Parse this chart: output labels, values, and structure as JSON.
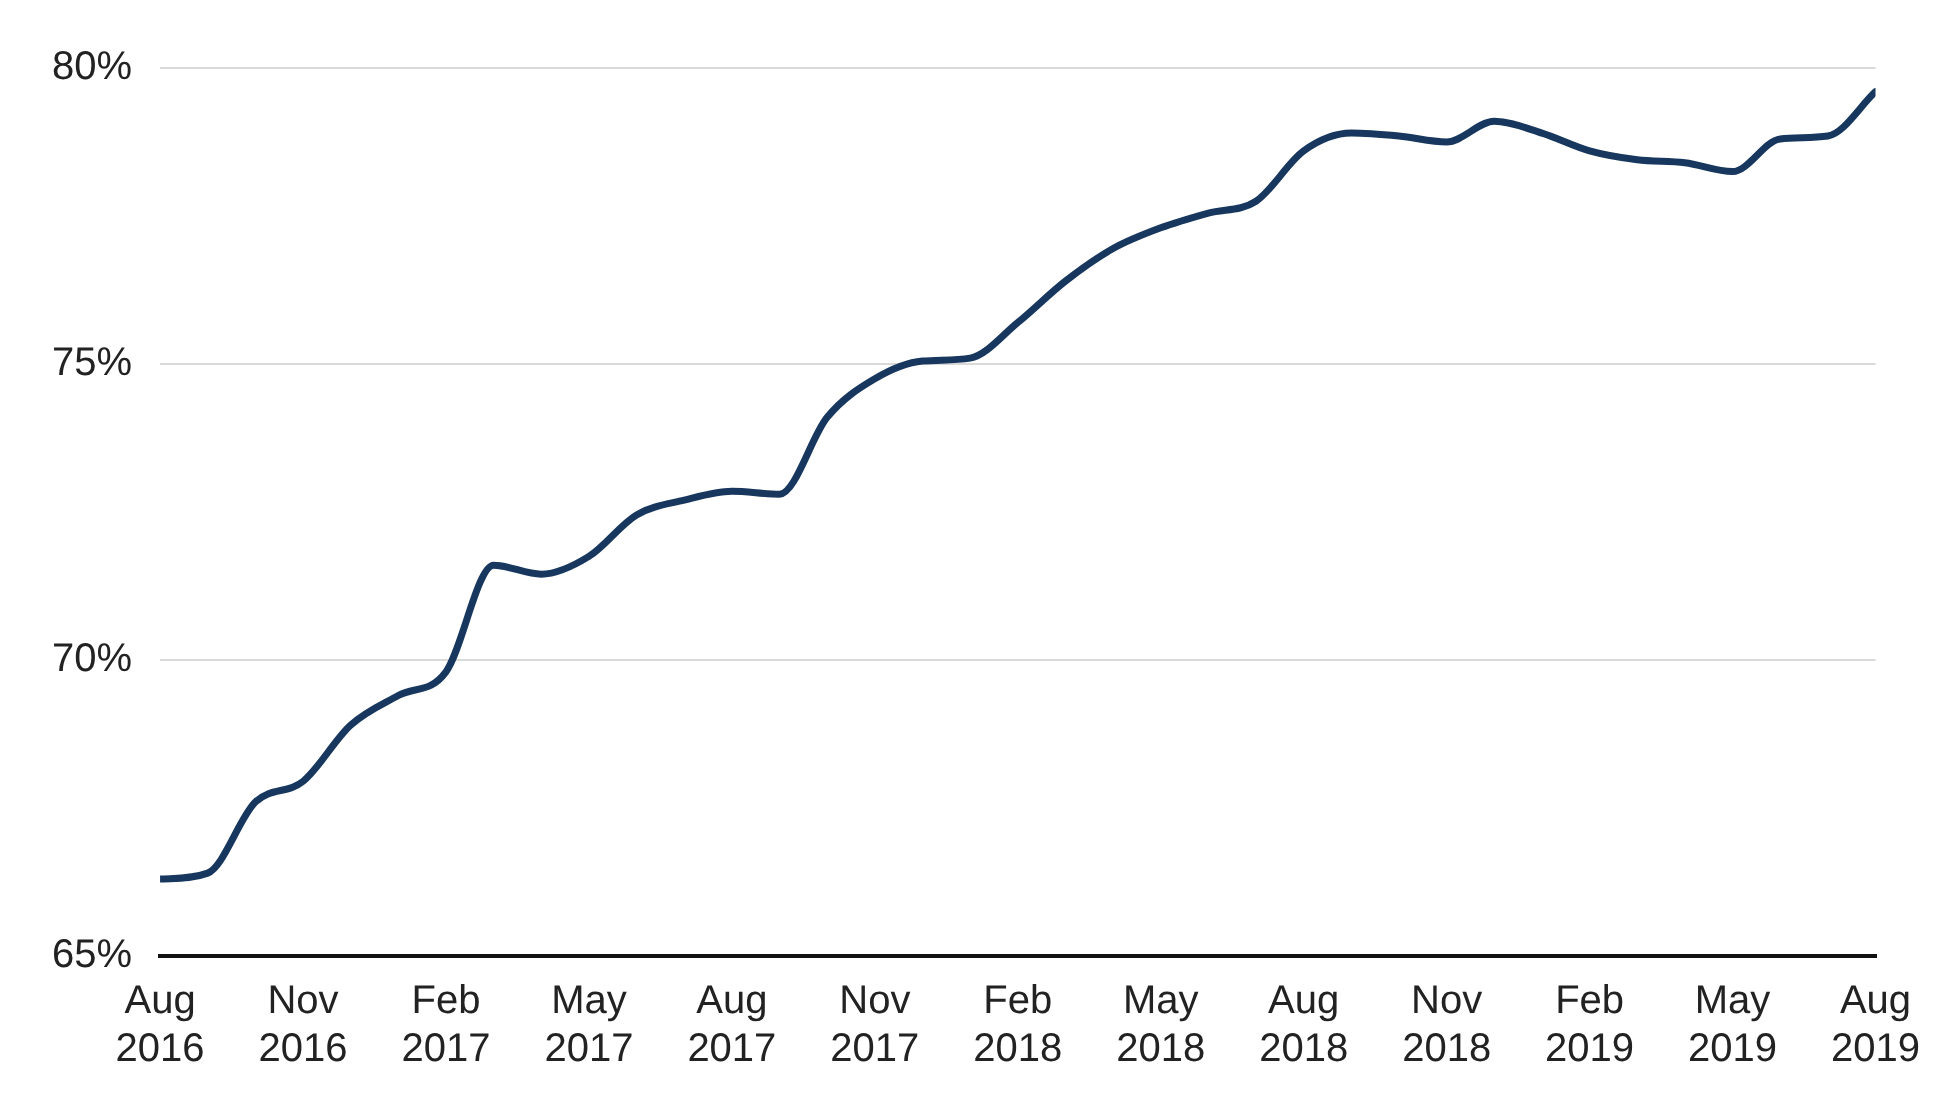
{
  "chart_data": {
    "type": "line",
    "x": [
      "2016-08",
      "2016-09",
      "2016-10",
      "2016-11",
      "2016-12",
      "2017-01",
      "2017-02",
      "2017-03",
      "2017-04",
      "2017-05",
      "2017-06",
      "2017-07",
      "2017-08",
      "2017-09",
      "2017-10",
      "2017-11",
      "2017-12",
      "2018-01",
      "2018-02",
      "2018-03",
      "2018-04",
      "2018-05",
      "2018-06",
      "2018-07",
      "2018-08",
      "2018-09",
      "2018-10",
      "2018-11",
      "2018-12",
      "2019-01",
      "2019-02",
      "2019-03",
      "2019-04",
      "2019-05",
      "2019-06",
      "2019-07",
      "2019-08"
    ],
    "series": [
      {
        "color": "#17375e",
        "values": [
          66.3,
          66.4,
          67.6,
          67.95,
          68.9,
          69.4,
          69.8,
          71.6,
          71.45,
          71.75,
          72.45,
          72.7,
          72.85,
          72.8,
          74.1,
          74.75,
          75.05,
          75.1,
          75.7,
          76.4,
          76.95,
          77.3,
          77.55,
          77.75,
          78.6,
          78.9,
          78.85,
          78.75,
          79.1,
          78.9,
          78.6,
          78.45,
          78.4,
          78.25,
          78.8,
          78.85,
          79.6
        ]
      }
    ],
    "xlim": [
      "2016-08",
      "2019-08"
    ],
    "xticks": [
      {
        "value": "2016-08",
        "label": "Aug 2016"
      },
      {
        "value": "2016-11",
        "label": "Nov 2016"
      },
      {
        "value": "2017-02",
        "label": "Feb 2017"
      },
      {
        "value": "2017-05",
        "label": "May 2017"
      },
      {
        "value": "2017-08",
        "label": "Aug 2017"
      },
      {
        "value": "2017-11",
        "label": "Nov 2017"
      },
      {
        "value": "2018-02",
        "label": "Feb 2018"
      },
      {
        "value": "2018-05",
        "label": "May 2018"
      },
      {
        "value": "2018-08",
        "label": "Aug 2018"
      },
      {
        "value": "2018-11",
        "label": "Nov 2018"
      },
      {
        "value": "2019-02",
        "label": "Feb 2019"
      },
      {
        "value": "2019-05",
        "label": "May 2019"
      },
      {
        "value": "2019-08",
        "label": "Aug 2019"
      }
    ],
    "ylim": [
      65,
      80
    ],
    "yticks": [
      {
        "value": 65,
        "label": "65%"
      },
      {
        "value": 70,
        "label": "70%"
      },
      {
        "value": 75,
        "label": "75%"
      },
      {
        "value": 80,
        "label": "80%"
      }
    ],
    "grid": "y",
    "legend": false,
    "marker": "none",
    "line_style": "solid"
  }
}
